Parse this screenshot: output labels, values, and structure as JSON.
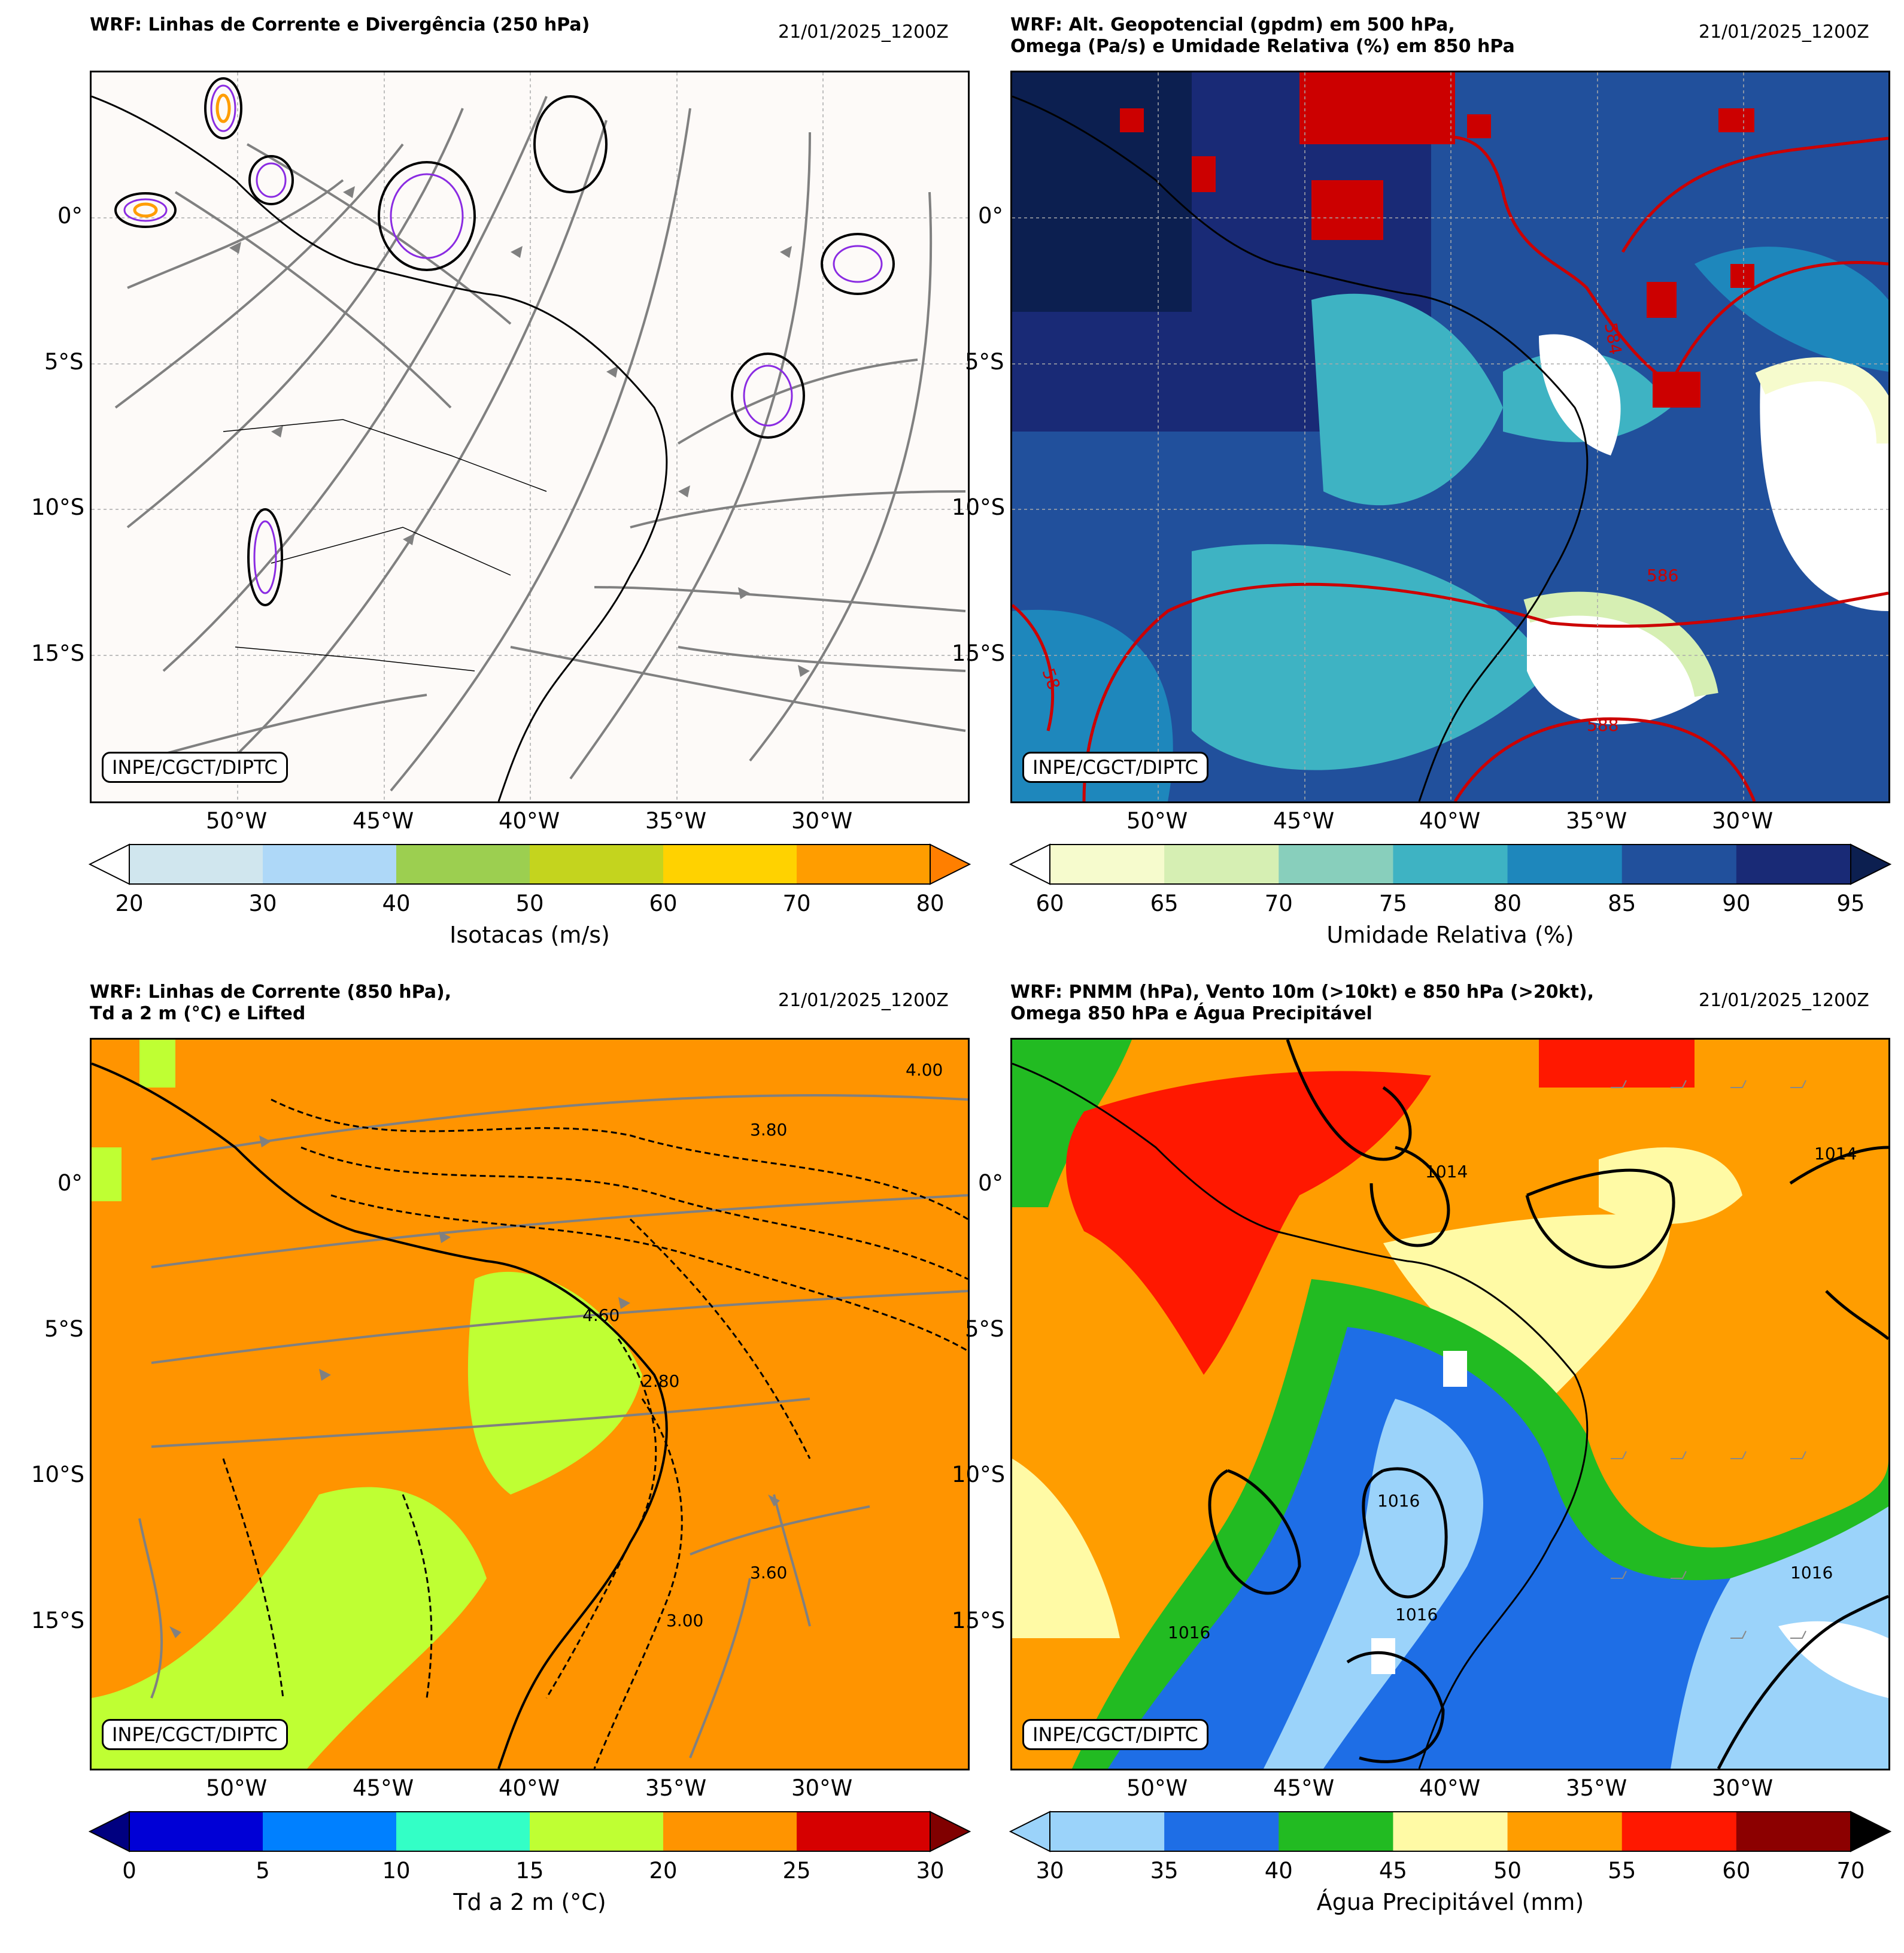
{
  "credit_text": "INPE/CGCT/DIPTC",
  "date_text": "21/01/2025_1200Z",
  "lon_ticks": [
    "50°W",
    "45°W",
    "40°W",
    "35°W",
    "30°W"
  ],
  "lat_ticks": [
    "0°",
    "5°S",
    "10°S",
    "15°S"
  ],
  "panels": [
    {
      "title": "WRF: Linhas de Corrente e Divergência (250 hPa)",
      "colorbar": {
        "label": "Isotacas (m/s)",
        "ticks": [
          "20",
          "30",
          "40",
          "50",
          "60",
          "70",
          "80"
        ],
        "colors": [
          "#d0e6ee",
          "#aed8f8",
          "#9ccf50",
          "#c4d41e",
          "#ffd200",
          "#ff9d00"
        ],
        "under": "#ffffff",
        "over": "#ff7f00"
      }
    },
    {
      "title": "WRF: Alt. Geopotencial (gpdm) em 500 hPa,\nOmega (Pa/s) e Umidade Relativa (%) em 850 hPa",
      "colorbar": {
        "label": "Umidade Relativa (%)",
        "ticks": [
          "60",
          "65",
          "70",
          "75",
          "80",
          "85",
          "90",
          "95"
        ],
        "colors": [
          "#f6fbcd",
          "#d6efb3",
          "#88cfbc",
          "#3eb3c3",
          "#1e87bc",
          "#21509c",
          "#192a76"
        ],
        "under": "#ffffff",
        "over": "#0c1f50"
      },
      "contour_labels": [
        "584",
        "586",
        "588",
        "58"
      ]
    },
    {
      "title": "WRF: Linhas de Corrente (850 hPa),\nTd a 2 m (°C) e Lifted",
      "colorbar": {
        "label": "Td a 2 m (°C)",
        "ticks": [
          "0",
          "5",
          "10",
          "15",
          "20",
          "25",
          "30"
        ],
        "colors": [
          "#0000d6",
          "#0080ff",
          "#33ffc6",
          "#bfff33",
          "#ff9400",
          "#d60000"
        ],
        "under": "#000080",
        "over": "#800000"
      },
      "contour_labels": [
        "3.00",
        "4.60",
        "2.80",
        "3.60",
        "4.00",
        "3.80"
      ]
    },
    {
      "title": "WRF: PNMM (hPa), Vento 10m (>10kt) e 850 hPa (>20kt),\nOmega 850 hPa e Água Precipitável",
      "colorbar": {
        "label": "Água Precipitável (mm)",
        "ticks": [
          "30",
          "35",
          "40",
          "45",
          "50",
          "55",
          "60",
          "70"
        ],
        "colors": [
          "#9bd3fa",
          "#1e6ee6",
          "#22bb22",
          "#fffaa5",
          "#ff9d00",
          "#ff1800",
          "#8c0000"
        ],
        "under": "#9bd3fa",
        "over": "#000000"
      },
      "contour_labels": [
        "1014",
        "1016",
        "1016",
        "1016",
        "1014",
        "1016"
      ]
    }
  ],
  "colors": {
    "background_250": "#fdfaf8",
    "streamline": "#808080",
    "geopotential": "#cc0000",
    "omega_purple": "#8a2be2",
    "map_border": "#000000"
  }
}
